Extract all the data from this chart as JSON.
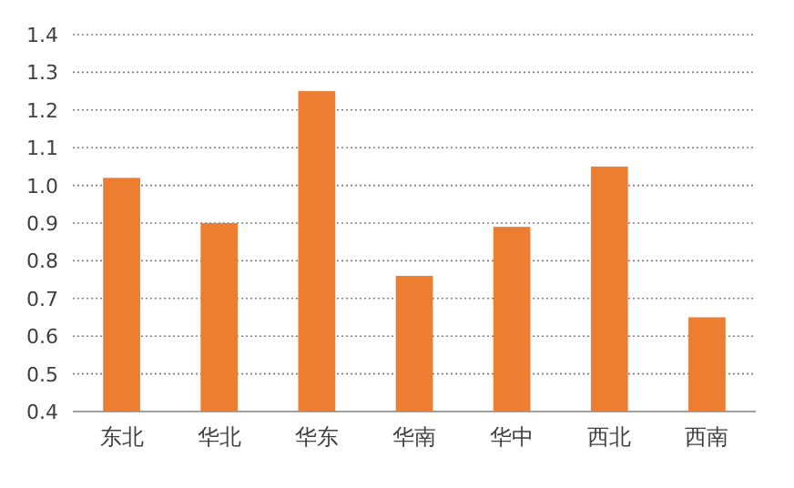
{
  "chart_data": {
    "type": "bar",
    "categories": [
      "东北",
      "华北",
      "华东",
      "华南",
      "华中",
      "西北",
      "西南"
    ],
    "values": [
      1.02,
      0.9,
      1.25,
      0.76,
      0.89,
      1.05,
      0.65
    ],
    "color": "#ed7d31",
    "ylim": [
      0.4,
      1.4
    ],
    "yticks": [
      0.4,
      0.5,
      0.6,
      0.7,
      0.8,
      0.9,
      {
        "value": 1,
        "label": "1.0"
      },
      1.1,
      1.2,
      1.3,
      1.4
    ],
    "grid": "y"
  }
}
